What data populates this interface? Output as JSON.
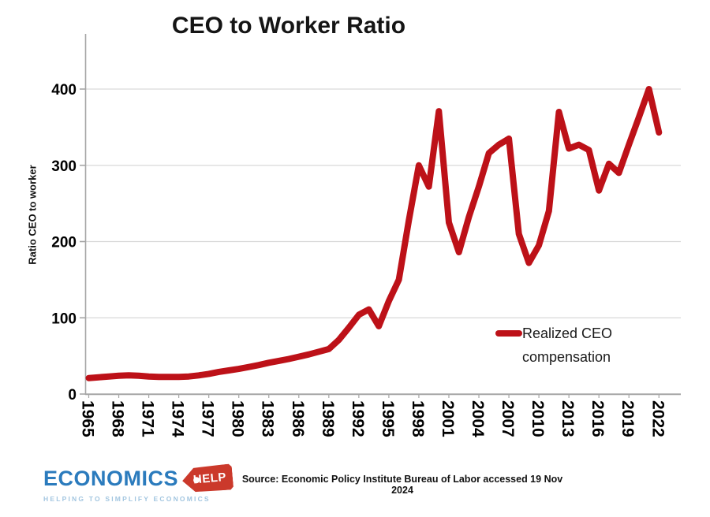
{
  "title": "CEO to Worker Ratio",
  "y_axis_title": "Ratio CEO to worker",
  "legend": {
    "label": "Realized CEO compensation"
  },
  "source_note": "Source: Economic Policy Institute Bureau of Labor accessed 19 Nov 2024",
  "logo": {
    "wordmark": "ECONOMICS",
    "tag": "HELP",
    "tagline": "HELPING TO SIMPLIFY ECONOMICS"
  },
  "colors": {
    "line_red": "#bd1118",
    "grid_gray": "#d9d9d9",
    "axis_gray": "#a6a6a6",
    "logo_blue": "#2b7bbd",
    "logo_tag_red": "#cb392b",
    "logo_tagline_blue": "#a3c6e0"
  },
  "chart_data": {
    "type": "line",
    "title": "CEO to Worker Ratio",
    "xlabel": "",
    "ylabel": "Ratio CEO to worker",
    "x": [
      1965,
      1966,
      1967,
      1968,
      1969,
      1970,
      1971,
      1972,
      1973,
      1974,
      1975,
      1976,
      1977,
      1978,
      1979,
      1980,
      1981,
      1982,
      1983,
      1984,
      1985,
      1986,
      1987,
      1988,
      1989,
      1990,
      1991,
      1992,
      1993,
      1994,
      1995,
      1996,
      1997,
      1998,
      1999,
      2000,
      2001,
      2002,
      2003,
      2004,
      2005,
      2006,
      2007,
      2008,
      2009,
      2010,
      2011,
      2012,
      2013,
      2014,
      2015,
      2016,
      2017,
      2018,
      2019,
      2020,
      2021,
      2022
    ],
    "series": [
      {
        "name": "Realized CEO compensation",
        "color": "#bd1118",
        "values": [
          21,
          22,
          23,
          24,
          24.5,
          24,
          23,
          22.5,
          22.5,
          22.5,
          23,
          24.5,
          26.5,
          29,
          31,
          33,
          35.5,
          38,
          41,
          43.5,
          46,
          49,
          52,
          55.5,
          59,
          71,
          87,
          104,
          111,
          89,
          122,
          150,
          228,
          300,
          272,
          371,
          225,
          186,
          232,
          272,
          316,
          327,
          335,
          210,
          172,
          195,
          240,
          370,
          322,
          327,
          320,
          267,
          302,
          290,
          327,
          363,
          400,
          343
        ]
      }
    ],
    "x_ticks": [
      1965,
      1968,
      1971,
      1974,
      1977,
      1980,
      1983,
      1986,
      1989,
      1992,
      1995,
      1998,
      2001,
      2004,
      2007,
      2010,
      2013,
      2016,
      2019,
      2022
    ],
    "y_ticks": [
      0,
      100,
      200,
      300,
      400
    ],
    "ylim": [
      0,
      440
    ],
    "xlim": [
      1964.7,
      2024.5
    ],
    "grid": "horizontal",
    "legend_position": "inside-right"
  }
}
